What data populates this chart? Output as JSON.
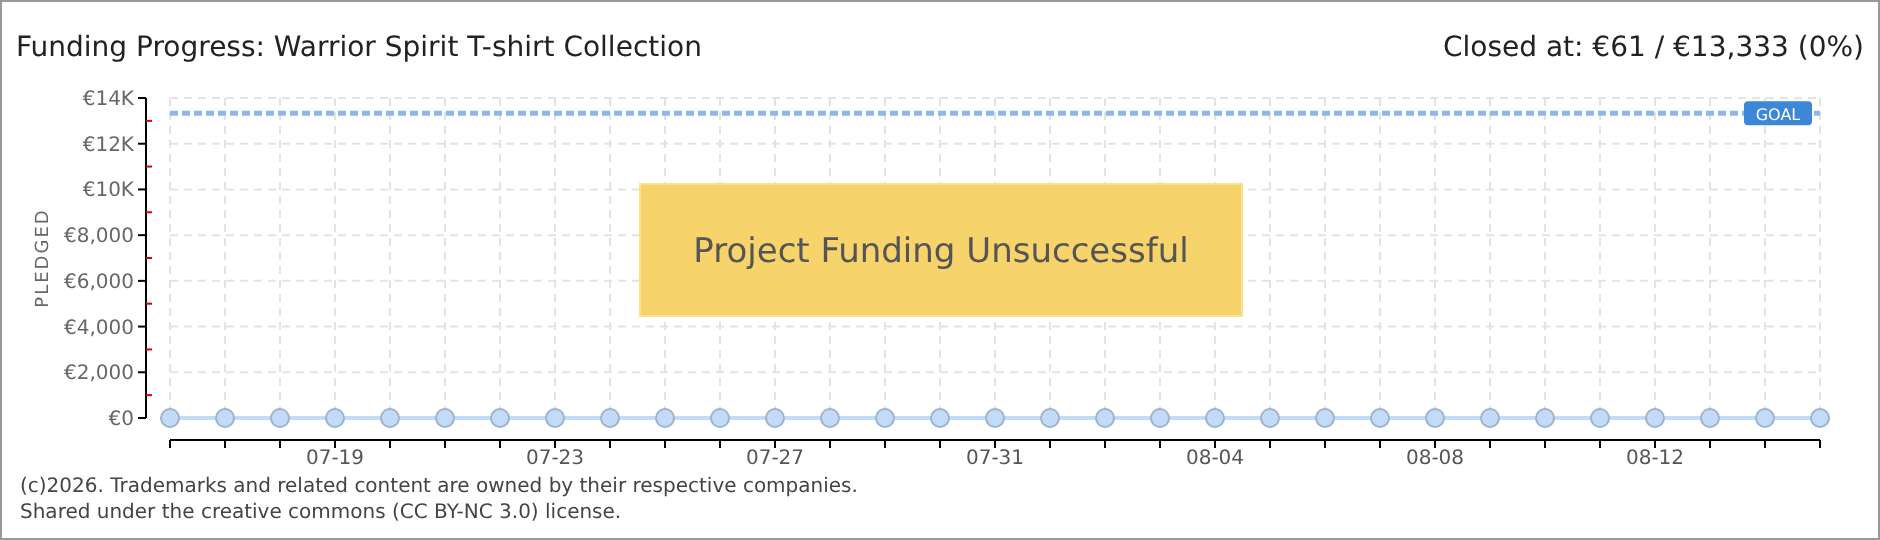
{
  "chart_data": {
    "type": "line",
    "title": "Funding Progress: Warrior Spirit T-shirt Collection",
    "subtitle": "Closed at:  €61 /  €13,333 (0%)",
    "ylabel": "PLEDGED",
    "categories": [
      null,
      null,
      null,
      "07-19",
      null,
      null,
      null,
      "07-23",
      null,
      null,
      null,
      "07-27",
      null,
      null,
      null,
      "07-31",
      null,
      null,
      null,
      "08-04",
      null,
      null,
      null,
      "08-08",
      null,
      null,
      null,
      "08-12",
      null,
      null,
      null
    ],
    "series": [
      {
        "color": "#c2dbf6",
        "values": [
          0,
          0,
          0,
          0,
          0,
          0,
          0,
          0,
          0,
          0,
          0,
          0,
          0,
          0,
          0,
          0,
          0,
          0,
          0,
          0,
          0,
          0,
          0,
          0,
          0,
          0,
          0,
          0,
          0,
          0,
          0
        ]
      }
    ],
    "ylim": [
      0,
      14000
    ],
    "yticks": [
      {
        "value": 0,
        "label": "€0"
      },
      {
        "value": 1000,
        "label": null
      },
      {
        "value": 2000,
        "label": "€2,000"
      },
      {
        "value": 3000,
        "label": null
      },
      {
        "value": 4000,
        "label": "€4,000"
      },
      {
        "value": 5000,
        "label": null
      },
      {
        "value": 6000,
        "label": "€6,000"
      },
      {
        "value": 7000,
        "label": null
      },
      {
        "value": 8000,
        "label": "€8,000"
      },
      {
        "value": 9000,
        "label": null
      },
      {
        "value": 10000,
        "label": "€10K"
      },
      {
        "value": 11000,
        "label": null
      },
      {
        "value": 12000,
        "label": "€12K"
      },
      {
        "value": 13000,
        "label": null
      },
      {
        "value": 14000,
        "label": "€14K"
      }
    ],
    "ref_lines": [
      {
        "axis": "y",
        "value": 13333,
        "label": "GOAL",
        "color": "#8fb8e8",
        "line_style": "dashed"
      }
    ],
    "grid": true,
    "marker": "circle",
    "line_style": "solid",
    "annotations": [
      "Project Funding Unsuccessful",
      "(c)2026. Trademarks and related content are owned by their respective companies.",
      "Shared under the creative commons (CC BY-NC 3.0) license."
    ]
  }
}
